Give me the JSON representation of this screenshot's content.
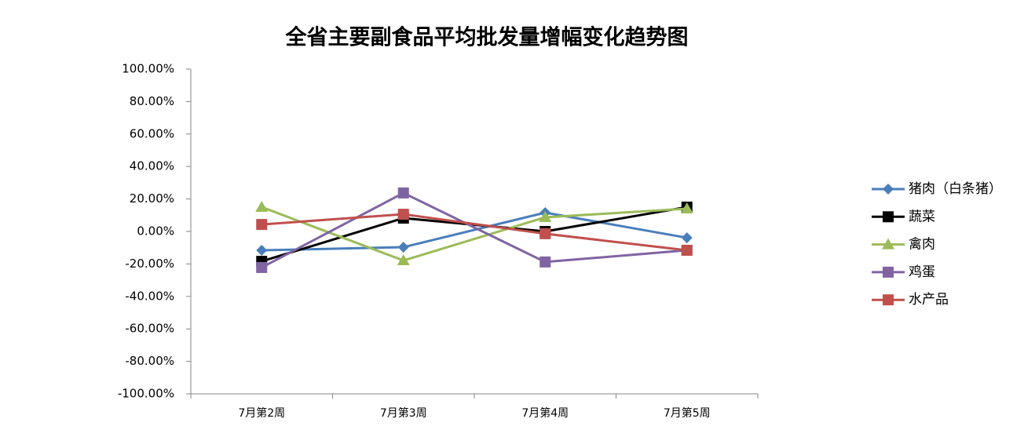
{
  "chart_data": {
    "type": "line",
    "title": "全省主要副食品平均批发量增幅变化趋势图",
    "categories": [
      "7月第2周",
      "7月第3周",
      "7月第4周",
      "7月第5周"
    ],
    "series": [
      {
        "name": "猪肉（白条猪）",
        "color": "#4a7ebb",
        "marker": "diamond",
        "values": [
          -11.6,
          -9.7,
          11.6,
          -3.9
        ]
      },
      {
        "name": "蔬菜",
        "color": "#000000",
        "marker": "square",
        "values": [
          -18.4,
          8.2,
          0,
          15
        ]
      },
      {
        "name": "禽肉",
        "color": "#9bbb59",
        "marker": "triangle",
        "values": [
          15,
          -17.9,
          8.7,
          14
        ]
      },
      {
        "name": "鸡蛋",
        "color": "#8064a2",
        "marker": "square",
        "values": [
          -22.2,
          23.7,
          -18.8,
          -11.6
        ]
      },
      {
        "name": "水产品",
        "color": "#c0504d",
        "marker": "square",
        "values": [
          4.3,
          10.6,
          -1.4,
          -11.6
        ]
      }
    ],
    "ylim": [
      -100,
      100
    ],
    "yticks": [
      {
        "value": 100,
        "label": "100.00%"
      },
      {
        "value": 80,
        "label": "80.00%"
      },
      {
        "value": 60,
        "label": "60.00%"
      },
      {
        "value": 40,
        "label": "40.00%"
      },
      {
        "value": 20,
        "label": "20.00%"
      },
      {
        "value": 0,
        "label": "0.00%"
      },
      {
        "value": -20,
        "label": "-20.00%"
      },
      {
        "value": -40,
        "label": "-40.00%"
      },
      {
        "value": -60,
        "label": "-60.00%"
      },
      {
        "value": -80,
        "label": "-80.00%"
      },
      {
        "value": -100,
        "label": "-100.00%"
      }
    ],
    "grid": false,
    "legend": "right"
  }
}
